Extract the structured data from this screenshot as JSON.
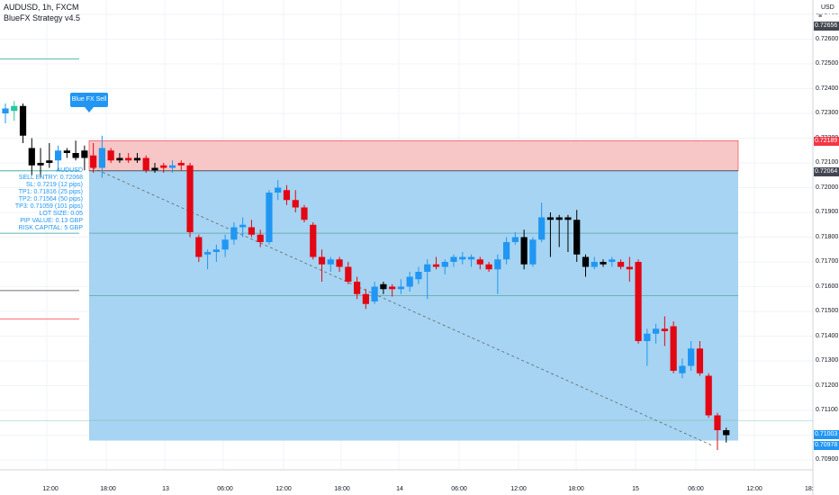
{
  "header": {
    "symbol_line": "AUDUSD, 1h, FXCM",
    "strategy_line": "BlueFX Strategy v4.5"
  },
  "signal": {
    "label": "Blue FX Sell"
  },
  "info_panel": {
    "lines": [
      "AUDUSD",
      "SELL ENTRY: 0.72068",
      "SL: 0.7219 (12 pips)",
      "TP1: 0.71816 (25 pips)",
      "TP2: 0.71564 (50 pips)",
      "TP3: 0.71059 (101 pips)",
      "LOT SIZE: 0.05",
      "PIP VALUE: 0.13 GBP",
      "RISK CAPITAL: 5 GBP"
    ]
  },
  "price_axis": {
    "currency": "USD",
    "settings_glyph": "≡",
    "ticks": [
      "0.72600",
      "0.72500",
      "0.72400",
      "0.72300",
      "0.72200",
      "0.72100",
      "0.72000",
      "0.71900",
      "0.71800",
      "0.71700",
      "0.71600",
      "0.71500",
      "0.71400",
      "0.71300",
      "0.71200",
      "0.71100",
      "0.71000",
      "0.70900"
    ],
    "partial_top": "0.72700",
    "badges": [
      {
        "text": "0.72656",
        "price": 0.72656,
        "bg": "#434651",
        "fg": "#ffffff"
      },
      {
        "text": "0.72189",
        "price": 0.72189,
        "bg": "#f23645",
        "fg": "#ffffff"
      },
      {
        "text": "0.72064",
        "price": 0.72064,
        "bg": "#434651",
        "fg": "#ffffff"
      },
      {
        "text": "0.71003",
        "price": 0.71003,
        "bg": "#2196f3",
        "fg": "#ffffff"
      },
      {
        "text": "0.70978",
        "price": 0.70978,
        "bg": "#2196f3",
        "fg": "#ffffff"
      }
    ]
  },
  "time_axis": {
    "labels": [
      "12:00",
      "18:00",
      "13",
      "06:00",
      "12:00",
      "18:00",
      "14",
      "06:00",
      "12:00",
      "18:00",
      "15",
      "06:00",
      "12:00",
      "18:"
    ]
  },
  "colors": {
    "up": "#2196f3",
    "down": "#e30613",
    "neutral": "#000000",
    "first_up": "#26c6a0",
    "risk_zone": "#f7c6c6",
    "reward_zone": "#a6d4f2",
    "tp_line": "#5aa6a0"
  },
  "chart_data": {
    "type": "candlestick",
    "symbol": "AUDUSD",
    "interval": "1h",
    "ylim": [
      0.7086,
      0.7274
    ],
    "trade": {
      "side": "sell",
      "entry": 0.72068,
      "stop_loss": 0.7219,
      "tp1": 0.71816,
      "tp2": 0.71564,
      "tp3": 0.71059,
      "target": 0.70978
    },
    "left_markers": [
      {
        "price": 0.7252,
        "color": "#26a69a"
      },
      {
        "price": 0.72068,
        "color": "#26a69a"
      },
      {
        "price": 0.71816,
        "color": "#26a69a"
      },
      {
        "price": 0.71584,
        "color": "#434651"
      },
      {
        "price": 0.7147,
        "color": "#f23645"
      }
    ],
    "candles": [
      {
        "o": 0.723,
        "h": 0.7234,
        "l": 0.7226,
        "c": 0.7232,
        "t": "up"
      },
      {
        "o": 0.7231,
        "h": 0.7235,
        "l": 0.7227,
        "c": 0.7233,
        "t": "first_up"
      },
      {
        "o": 0.7233,
        "h": 0.7234,
        "l": 0.7218,
        "c": 0.7221,
        "t": "neutral"
      },
      {
        "o": 0.7216,
        "h": 0.722,
        "l": 0.7205,
        "c": 0.7209,
        "t": "neutral"
      },
      {
        "o": 0.721,
        "h": 0.7216,
        "l": 0.7204,
        "c": 0.7209,
        "t": "neutral"
      },
      {
        "o": 0.721,
        "h": 0.7218,
        "l": 0.7208,
        "c": 0.7211,
        "t": "neutral"
      },
      {
        "o": 0.7211,
        "h": 0.7217,
        "l": 0.7207,
        "c": 0.7215,
        "t": "up"
      },
      {
        "o": 0.7214,
        "h": 0.7216,
        "l": 0.7212,
        "c": 0.7215,
        "t": "neutral"
      },
      {
        "o": 0.7214,
        "h": 0.7219,
        "l": 0.7211,
        "c": 0.7212,
        "t": "neutral"
      },
      {
        "o": 0.7212,
        "h": 0.7217,
        "l": 0.7207,
        "c": 0.7215,
        "t": "neutral"
      },
      {
        "o": 0.7213,
        "h": 0.7218,
        "l": 0.7206,
        "c": 0.7208,
        "t": "down"
      },
      {
        "o": 0.7208,
        "h": 0.7221,
        "l": 0.7204,
        "c": 0.7216,
        "t": "up"
      },
      {
        "o": 0.7215,
        "h": 0.7216,
        "l": 0.721,
        "c": 0.7211,
        "t": "down"
      },
      {
        "o": 0.7211,
        "h": 0.7214,
        "l": 0.721,
        "c": 0.7212,
        "t": "neutral"
      },
      {
        "o": 0.7212,
        "h": 0.7214,
        "l": 0.721,
        "c": 0.7211,
        "t": "down"
      },
      {
        "o": 0.7211,
        "h": 0.7214,
        "l": 0.721,
        "c": 0.7212,
        "t": "neutral"
      },
      {
        "o": 0.7212,
        "h": 0.7213,
        "l": 0.7206,
        "c": 0.7207,
        "t": "down"
      },
      {
        "o": 0.7207,
        "h": 0.721,
        "l": 0.7206,
        "c": 0.7208,
        "t": "neutral"
      },
      {
        "o": 0.7208,
        "h": 0.721,
        "l": 0.7206,
        "c": 0.7209,
        "t": "down"
      },
      {
        "o": 0.7209,
        "h": 0.7211,
        "l": 0.7206,
        "c": 0.7208,
        "t": "up"
      },
      {
        "o": 0.7209,
        "h": 0.7211,
        "l": 0.7207,
        "c": 0.721,
        "t": "down"
      },
      {
        "o": 0.7209,
        "h": 0.721,
        "l": 0.718,
        "c": 0.7182,
        "t": "down"
      },
      {
        "o": 0.718,
        "h": 0.7181,
        "l": 0.717,
        "c": 0.7172,
        "t": "down"
      },
      {
        "o": 0.7173,
        "h": 0.7175,
        "l": 0.7167,
        "c": 0.7174,
        "t": "up"
      },
      {
        "o": 0.7174,
        "h": 0.7177,
        "l": 0.717,
        "c": 0.7175,
        "t": "up"
      },
      {
        "o": 0.7175,
        "h": 0.7181,
        "l": 0.7172,
        "c": 0.7179,
        "t": "up"
      },
      {
        "o": 0.7179,
        "h": 0.7186,
        "l": 0.7177,
        "c": 0.7184,
        "t": "up"
      },
      {
        "o": 0.7184,
        "h": 0.7188,
        "l": 0.718,
        "c": 0.7185,
        "t": "up"
      },
      {
        "o": 0.7184,
        "h": 0.7187,
        "l": 0.718,
        "c": 0.7181,
        "t": "down"
      },
      {
        "o": 0.7181,
        "h": 0.7183,
        "l": 0.7176,
        "c": 0.7178,
        "t": "down"
      },
      {
        "o": 0.7178,
        "h": 0.7199,
        "l": 0.7177,
        "c": 0.7198,
        "t": "up"
      },
      {
        "o": 0.7198,
        "h": 0.7203,
        "l": 0.7195,
        "c": 0.72,
        "t": "up"
      },
      {
        "o": 0.7199,
        "h": 0.7201,
        "l": 0.7193,
        "c": 0.7195,
        "t": "down"
      },
      {
        "o": 0.7195,
        "h": 0.7199,
        "l": 0.719,
        "c": 0.7192,
        "t": "down"
      },
      {
        "o": 0.7192,
        "h": 0.7193,
        "l": 0.7186,
        "c": 0.7187,
        "t": "down"
      },
      {
        "o": 0.7185,
        "h": 0.7186,
        "l": 0.7171,
        "c": 0.7172,
        "t": "down"
      },
      {
        "o": 0.7172,
        "h": 0.7175,
        "l": 0.7162,
        "c": 0.7169,
        "t": "down"
      },
      {
        "o": 0.7169,
        "h": 0.7172,
        "l": 0.7166,
        "c": 0.7171,
        "t": "up"
      },
      {
        "o": 0.7171,
        "h": 0.7172,
        "l": 0.7166,
        "c": 0.7168,
        "t": "down"
      },
      {
        "o": 0.7168,
        "h": 0.717,
        "l": 0.7161,
        "c": 0.7162,
        "t": "down"
      },
      {
        "o": 0.7162,
        "h": 0.7164,
        "l": 0.7155,
        "c": 0.7157,
        "t": "down"
      },
      {
        "o": 0.7157,
        "h": 0.7159,
        "l": 0.7151,
        "c": 0.7153,
        "t": "down"
      },
      {
        "o": 0.7154,
        "h": 0.7162,
        "l": 0.7153,
        "c": 0.716,
        "t": "up"
      },
      {
        "o": 0.7159,
        "h": 0.7162,
        "l": 0.7157,
        "c": 0.7161,
        "t": "neutral"
      },
      {
        "o": 0.716,
        "h": 0.7161,
        "l": 0.7156,
        "c": 0.7159,
        "t": "down"
      },
      {
        "o": 0.7159,
        "h": 0.7163,
        "l": 0.7157,
        "c": 0.716,
        "t": "up"
      },
      {
        "o": 0.716,
        "h": 0.7166,
        "l": 0.7158,
        "c": 0.7164,
        "t": "up"
      },
      {
        "o": 0.7163,
        "h": 0.7168,
        "l": 0.7161,
        "c": 0.7166,
        "t": "up"
      },
      {
        "o": 0.7166,
        "h": 0.7171,
        "l": 0.7155,
        "c": 0.7169,
        "t": "up"
      },
      {
        "o": 0.7169,
        "h": 0.7172,
        "l": 0.7167,
        "c": 0.7168,
        "t": "down"
      },
      {
        "o": 0.7168,
        "h": 0.7171,
        "l": 0.7165,
        "c": 0.717,
        "t": "up"
      },
      {
        "o": 0.717,
        "h": 0.7173,
        "l": 0.7168,
        "c": 0.7172,
        "t": "up"
      },
      {
        "o": 0.7172,
        "h": 0.7174,
        "l": 0.7169,
        "c": 0.7171,
        "t": "up"
      },
      {
        "o": 0.7171,
        "h": 0.7173,
        "l": 0.7168,
        "c": 0.7172,
        "t": "up"
      },
      {
        "o": 0.7171,
        "h": 0.7172,
        "l": 0.7167,
        "c": 0.7169,
        "t": "down"
      },
      {
        "o": 0.7169,
        "h": 0.717,
        "l": 0.7166,
        "c": 0.7167,
        "t": "down"
      },
      {
        "o": 0.7167,
        "h": 0.7173,
        "l": 0.7157,
        "c": 0.7171,
        "t": "up"
      },
      {
        "o": 0.7171,
        "h": 0.718,
        "l": 0.7169,
        "c": 0.7178,
        "t": "up"
      },
      {
        "o": 0.7178,
        "h": 0.7182,
        "l": 0.7177,
        "c": 0.718,
        "t": "up"
      },
      {
        "o": 0.718,
        "h": 0.7183,
        "l": 0.7167,
        "c": 0.7169,
        "t": "neutral"
      },
      {
        "o": 0.7169,
        "h": 0.718,
        "l": 0.7168,
        "c": 0.7179,
        "t": "up"
      },
      {
        "o": 0.7179,
        "h": 0.7194,
        "l": 0.7178,
        "c": 0.7188,
        "t": "up"
      },
      {
        "o": 0.7188,
        "h": 0.719,
        "l": 0.7172,
        "c": 0.7187,
        "t": "neutral"
      },
      {
        "o": 0.7187,
        "h": 0.7189,
        "l": 0.7176,
        "c": 0.7188,
        "t": "neutral"
      },
      {
        "o": 0.7188,
        "h": 0.7189,
        "l": 0.7174,
        "c": 0.7187,
        "t": "neutral"
      },
      {
        "o": 0.7187,
        "h": 0.7191,
        "l": 0.717,
        "c": 0.7173,
        "t": "neutral"
      },
      {
        "o": 0.7172,
        "h": 0.7173,
        "l": 0.7164,
        "c": 0.7168,
        "t": "neutral"
      },
      {
        "o": 0.7168,
        "h": 0.7172,
        "l": 0.7167,
        "c": 0.717,
        "t": "up"
      },
      {
        "o": 0.7169,
        "h": 0.7171,
        "l": 0.7168,
        "c": 0.717,
        "t": "neutral"
      },
      {
        "o": 0.717,
        "h": 0.7172,
        "l": 0.7168,
        "c": 0.7171,
        "t": "up"
      },
      {
        "o": 0.717,
        "h": 0.7171,
        "l": 0.7167,
        "c": 0.7168,
        "t": "down"
      },
      {
        "o": 0.7168,
        "h": 0.7172,
        "l": 0.7162,
        "c": 0.7167,
        "t": "down"
      },
      {
        "o": 0.717,
        "h": 0.7171,
        "l": 0.7137,
        "c": 0.7138,
        "t": "down"
      },
      {
        "o": 0.7138,
        "h": 0.7143,
        "l": 0.7128,
        "c": 0.7141,
        "t": "up"
      },
      {
        "o": 0.7141,
        "h": 0.7145,
        "l": 0.7137,
        "c": 0.7143,
        "t": "up"
      },
      {
        "o": 0.7143,
        "h": 0.7148,
        "l": 0.7136,
        "c": 0.7142,
        "t": "down"
      },
      {
        "o": 0.7144,
        "h": 0.7146,
        "l": 0.7125,
        "c": 0.7126,
        "t": "down"
      },
      {
        "o": 0.7125,
        "h": 0.7131,
        "l": 0.7123,
        "c": 0.7128,
        "t": "up"
      },
      {
        "o": 0.7128,
        "h": 0.7138,
        "l": 0.7126,
        "c": 0.7135,
        "t": "up"
      },
      {
        "o": 0.7135,
        "h": 0.7138,
        "l": 0.7124,
        "c": 0.7125,
        "t": "down"
      },
      {
        "o": 0.7124,
        "h": 0.7125,
        "l": 0.7107,
        "c": 0.7108,
        "t": "down"
      },
      {
        "o": 0.7108,
        "h": 0.7109,
        "l": 0.7094,
        "c": 0.7102,
        "t": "down"
      },
      {
        "o": 0.7102,
        "h": 0.7103,
        "l": 0.7097,
        "c": 0.71,
        "t": "neutral"
      }
    ]
  }
}
